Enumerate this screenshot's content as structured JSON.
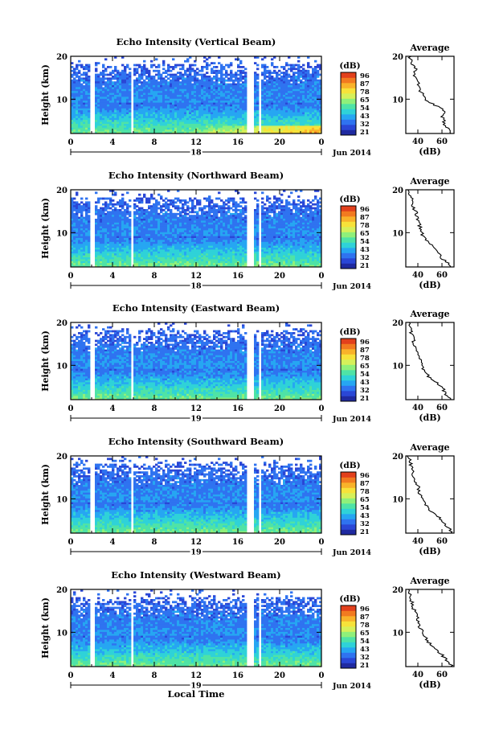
{
  "colorbar": {
    "unit": "(dB)",
    "ticks": [
      "96",
      "87",
      "78",
      "65",
      "54",
      "43",
      "32",
      "21"
    ],
    "colors": [
      "#1f2aa0",
      "#2a47d6",
      "#2f73f0",
      "#26a6f2",
      "#2fd2d8",
      "#4fe3a6",
      "#8ff07a",
      "#d6f05a",
      "#f7e23a",
      "#f9b22a",
      "#f27a20",
      "#e2401c"
    ]
  },
  "axes_text": {
    "ylabel": "Height (km)",
    "y_ticks": [
      "20",
      "10"
    ],
    "x_ticks": [
      "0",
      "4",
      "8",
      "12",
      "16",
      "20",
      "0"
    ],
    "avg_title": "Average",
    "avg_xlabel": "(dB)"
  },
  "panels": [
    {
      "title": "Echo Intensity (Vertical Beam)",
      "day": "18",
      "date": "Jun 2014",
      "xlabel": "",
      "avg_x_ticks": [
        "40",
        "60"
      ]
    },
    {
      "title": "Echo Intensity (Northward Beam)",
      "day": "18",
      "date": "Jun 2014",
      "xlabel": "",
      "avg_x_ticks": [
        "40",
        "60"
      ]
    },
    {
      "title": "Echo Intensity (Eastward Beam)",
      "day": "19",
      "date": "Jun 2014",
      "xlabel": "",
      "avg_x_ticks": [
        "40",
        "60"
      ]
    },
    {
      "title": "Echo Intensity (Southward Beam)",
      "day": "19",
      "date": "Jun 2014",
      "xlabel": "",
      "avg_x_ticks": [
        "40",
        "60"
      ]
    },
    {
      "title": "Echo Intensity (Westward Beam)",
      "day": "19",
      "date": "Jun 2014",
      "xlabel": "Local Time",
      "avg_x_ticks": [
        "40",
        "60"
      ]
    }
  ],
  "chart_data": [
    {
      "type": "heatmap",
      "title": "Echo Intensity (Vertical Beam)",
      "xlabel": "",
      "ylabel": "Height (km)",
      "xlim": [
        0,
        24
      ],
      "ylim": [
        2,
        20
      ],
      "x_ticks": [
        0,
        4,
        8,
        12,
        16,
        20,
        24
      ],
      "y_ticks": [
        10,
        20
      ],
      "colorbar_label": "(dB)",
      "colorbar_ticks": [
        21,
        32,
        43,
        54,
        65,
        78,
        87,
        96
      ],
      "data_gaps_hours": [
        [
          1.9,
          2.2
        ],
        [
          5.7,
          5.95
        ],
        [
          16.9,
          17.6
        ],
        [
          17.9,
          18.2
        ]
      ],
      "average_profile": {
        "title": "Average",
        "xlabel": "(dB)",
        "xlim": [
          30,
          70
        ],
        "ylim": [
          2,
          20
        ],
        "height_km": [
          2,
          3,
          4,
          5,
          6,
          7,
          8,
          9,
          10,
          11,
          12,
          13,
          14,
          15,
          16,
          17,
          18,
          19,
          20
        ],
        "db": [
          68,
          66,
          62,
          62,
          60,
          63,
          58,
          52,
          46,
          44,
          42,
          41,
          40,
          38,
          37,
          38,
          36,
          34,
          33
        ]
      }
    },
    {
      "type": "heatmap",
      "title": "Echo Intensity (Northward Beam)",
      "xlabel": "",
      "ylabel": "Height (km)",
      "xlim": [
        0,
        24
      ],
      "ylim": [
        2,
        20
      ],
      "x_ticks": [
        0,
        4,
        8,
        12,
        16,
        20,
        24
      ],
      "y_ticks": [
        10,
        20
      ],
      "colorbar_label": "(dB)",
      "colorbar_ticks": [
        21,
        32,
        43,
        54,
        65,
        78,
        87,
        96
      ],
      "data_gaps_hours": [
        [
          1.9,
          2.2
        ],
        [
          5.7,
          5.95
        ],
        [
          16.9,
          17.6
        ],
        [
          17.9,
          18.2
        ]
      ],
      "average_profile": {
        "title": "Average",
        "xlabel": "(dB)",
        "xlim": [
          30,
          70
        ],
        "ylim": [
          2,
          20
        ],
        "height_km": [
          2,
          3,
          4,
          5,
          6,
          7,
          8,
          9,
          10,
          11,
          12,
          13,
          14,
          15,
          16,
          17,
          18,
          19,
          20
        ],
        "db": [
          68,
          64,
          60,
          58,
          55,
          52,
          48,
          45,
          43,
          42,
          41,
          40,
          39,
          38,
          36,
          36,
          35,
          33,
          32
        ]
      }
    },
    {
      "type": "heatmap",
      "title": "Echo Intensity (Eastward Beam)",
      "xlabel": "",
      "ylabel": "Height (km)",
      "xlim": [
        0,
        24
      ],
      "ylim": [
        2,
        20
      ],
      "x_ticks": [
        0,
        4,
        8,
        12,
        16,
        20,
        24
      ],
      "y_ticks": [
        10,
        20
      ],
      "colorbar_label": "(dB)",
      "colorbar_ticks": [
        21,
        32,
        43,
        54,
        65,
        78,
        87,
        96
      ],
      "data_gaps_hours": [
        [
          1.9,
          2.2
        ],
        [
          5.7,
          5.95
        ],
        [
          16.9,
          17.6
        ],
        [
          17.9,
          18.2
        ]
      ],
      "average_profile": {
        "title": "Average",
        "xlabel": "(dB)",
        "xlim": [
          30,
          70
        ],
        "ylim": [
          2,
          20
        ],
        "height_km": [
          2,
          3,
          4,
          5,
          6,
          7,
          8,
          9,
          10,
          11,
          12,
          13,
          14,
          15,
          16,
          17,
          18,
          19,
          20
        ],
        "db": [
          68,
          64,
          62,
          60,
          55,
          50,
          47,
          45,
          43,
          42,
          40,
          39,
          38,
          37,
          36,
          35,
          34,
          33,
          32
        ]
      }
    },
    {
      "type": "heatmap",
      "title": "Echo Intensity (Southward Beam)",
      "xlabel": "",
      "ylabel": "Height (km)",
      "xlim": [
        0,
        24
      ],
      "ylim": [
        2,
        20
      ],
      "x_ticks": [
        0,
        4,
        8,
        12,
        16,
        20,
        24
      ],
      "y_ticks": [
        10,
        20
      ],
      "colorbar_label": "(dB)",
      "colorbar_ticks": [
        21,
        32,
        43,
        54,
        65,
        78,
        87,
        96
      ],
      "data_gaps_hours": [
        [
          1.9,
          2.2
        ],
        [
          5.7,
          5.95
        ],
        [
          16.9,
          17.6
        ],
        [
          17.9,
          18.2
        ]
      ],
      "average_profile": {
        "title": "Average",
        "xlabel": "(dB)",
        "xlim": [
          30,
          70
        ],
        "ylim": [
          2,
          20
        ],
        "height_km": [
          2,
          3,
          4,
          5,
          6,
          7,
          8,
          9,
          10,
          11,
          12,
          13,
          14,
          15,
          16,
          17,
          18,
          19,
          20
        ],
        "db": [
          68,
          66,
          62,
          60,
          56,
          52,
          48,
          46,
          44,
          42,
          41,
          40,
          38,
          37,
          36,
          35,
          34,
          33,
          32
        ]
      }
    },
    {
      "type": "heatmap",
      "title": "Echo Intensity (Westward Beam)",
      "xlabel": "Local Time",
      "ylabel": "Height (km)",
      "xlim": [
        0,
        24
      ],
      "ylim": [
        2,
        20
      ],
      "x_ticks": [
        0,
        4,
        8,
        12,
        16,
        20,
        24
      ],
      "y_ticks": [
        10,
        20
      ],
      "colorbar_label": "(dB)",
      "colorbar_ticks": [
        21,
        32,
        43,
        54,
        65,
        78,
        87,
        96
      ],
      "data_gaps_hours": [
        [
          1.9,
          2.2
        ],
        [
          5.7,
          5.95
        ],
        [
          16.9,
          17.6
        ],
        [
          17.9,
          18.2
        ]
      ],
      "average_profile": {
        "title": "Average",
        "xlabel": "(dB)",
        "xlim": [
          30,
          70
        ],
        "ylim": [
          2,
          20
        ],
        "height_km": [
          2,
          3,
          4,
          5,
          6,
          7,
          8,
          9,
          10,
          11,
          12,
          13,
          14,
          15,
          16,
          17,
          18,
          19,
          20
        ],
        "db": [
          68,
          66,
          62,
          59,
          55,
          51,
          48,
          46,
          44,
          42,
          41,
          40,
          39,
          37,
          36,
          35,
          34,
          33,
          32
        ]
      }
    }
  ]
}
